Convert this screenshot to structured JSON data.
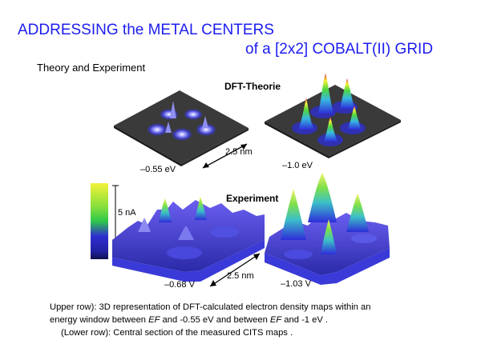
{
  "slide": {
    "title_line1": "ADDRESSING the METAL  CENTERS",
    "title_line2": "of a [2x2] COBALT(II) GRID",
    "subtitle": "Theory and Experiment"
  },
  "figure": {
    "dft_label": "DFT-Theorie",
    "experiment_label": "Experiment",
    "panel_top_left_energy": "–0.55 eV",
    "panel_top_right_energy": "–1.0 eV",
    "panel_bottom_left_voltage": "–0.68 V",
    "panel_bottom_right_voltage": "–1.03 V",
    "scale_top": "2.5 nm",
    "scale_bottom": "2.5 nm",
    "colorbar_label": "5 nA",
    "colors": {
      "title": "#1d1df0",
      "surface_dark": "#2a2a2a",
      "surface_blue": "#3d3de0",
      "peak_green": "#4fd63f",
      "peak_yellow": "#f2f23a",
      "peak_red": "#e0305a"
    }
  },
  "caption": {
    "line1": "Upper row): 3D representation of DFT-calculated electron density maps within an",
    "line2_a": "energy window between ",
    "line2_ef1": "EF",
    "line2_b": " and -0.55 eV and between ",
    "line2_ef2": "EF",
    "line2_c": " and -1 eV .",
    "line3": "(Lower row): Central section of the measured CITS maps ."
  }
}
